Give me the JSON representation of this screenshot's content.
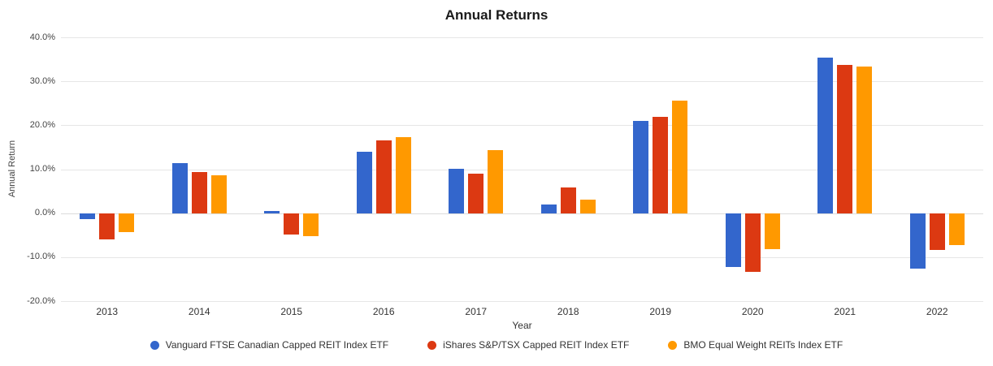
{
  "chart_data": {
    "type": "bar",
    "title": "Annual Returns",
    "xlabel": "Year",
    "ylabel": "Annual Return",
    "grid": true,
    "legend_position": "bottom",
    "ylim": [
      -20,
      40
    ],
    "ytick_values": [
      40,
      30,
      20,
      10,
      0,
      -10,
      -20
    ],
    "ytick_labels": [
      "40.0%",
      "30.0%",
      "20.0%",
      "10.0%",
      "0.0%",
      "-10.0%",
      "-20.0%"
    ],
    "categories": [
      "2013",
      "2014",
      "2015",
      "2016",
      "2017",
      "2018",
      "2019",
      "2020",
      "2021",
      "2022"
    ],
    "series": [
      {
        "name": "Vanguard FTSE Canadian Capped REIT Index ETF",
        "color": "#3366CC",
        "values": [
          -1.3,
          11.4,
          0.5,
          13.9,
          10.1,
          1.9,
          21.0,
          -12.2,
          35.4,
          -12.7
        ]
      },
      {
        "name": "iShares S&P/TSX Capped REIT Index ETF",
        "color": "#DC3912",
        "values": [
          -5.9,
          9.3,
          -4.9,
          16.5,
          9.0,
          5.8,
          21.9,
          -13.4,
          33.8,
          -8.3
        ]
      },
      {
        "name": "BMO Equal Weight REITs Index ETF",
        "color": "#FF9900",
        "values": [
          -4.4,
          8.6,
          -5.2,
          17.3,
          14.4,
          3.1,
          25.6,
          -8.2,
          33.4,
          -7.2
        ]
      }
    ]
  }
}
